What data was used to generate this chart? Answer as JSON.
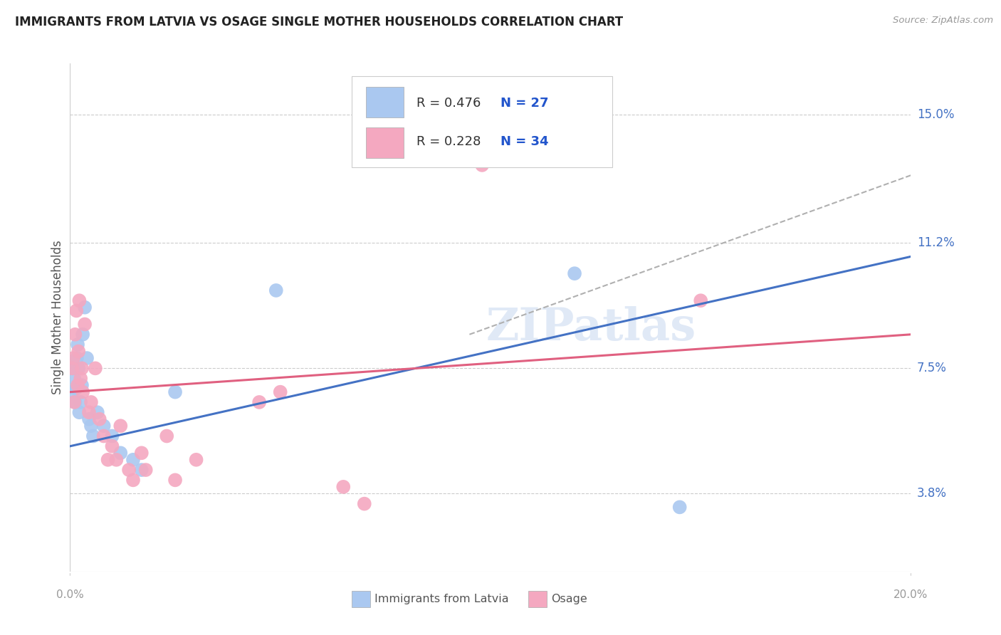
{
  "title": "IMMIGRANTS FROM LATVIA VS OSAGE SINGLE MOTHER HOUSEHOLDS CORRELATION CHART",
  "source": "Source: ZipAtlas.com",
  "ylabel": "Single Mother Households",
  "ytick_labels": [
    "3.8%",
    "7.5%",
    "11.2%",
    "15.0%"
  ],
  "ytick_values": [
    3.8,
    7.5,
    11.2,
    15.0
  ],
  "xmin": 0.0,
  "xmax": 20.0,
  "ymin": 1.5,
  "ymax": 16.5,
  "legend1_R": "R = 0.476",
  "legend1_N": "N = 27",
  "legend2_R": "R = 0.228",
  "legend2_N": "N = 34",
  "legend_label1": "Immigrants from Latvia",
  "legend_label2": "Osage",
  "watermark": "ZIPatlas",
  "blue_color": "#aac8f0",
  "pink_color": "#f4a8c0",
  "blue_line_color": "#4472c4",
  "pink_line_color": "#e06080",
  "r_color": "#333333",
  "n_color": "#2255cc",
  "blue_scatter": [
    [
      0.05,
      6.8
    ],
    [
      0.08,
      7.5
    ],
    [
      0.1,
      7.2
    ],
    [
      0.12,
      6.5
    ],
    [
      0.14,
      6.9
    ],
    [
      0.16,
      7.8
    ],
    [
      0.18,
      8.2
    ],
    [
      0.2,
      7.5
    ],
    [
      0.22,
      6.2
    ],
    [
      0.25,
      6.5
    ],
    [
      0.28,
      7.0
    ],
    [
      0.3,
      8.5
    ],
    [
      0.35,
      9.3
    ],
    [
      0.4,
      7.8
    ],
    [
      0.45,
      6.0
    ],
    [
      0.5,
      5.8
    ],
    [
      0.55,
      5.5
    ],
    [
      0.65,
      6.2
    ],
    [
      0.8,
      5.8
    ],
    [
      1.0,
      5.5
    ],
    [
      1.2,
      5.0
    ],
    [
      1.5,
      4.8
    ],
    [
      1.7,
      4.5
    ],
    [
      2.5,
      6.8
    ],
    [
      4.9,
      9.8
    ],
    [
      12.0,
      10.3
    ],
    [
      14.5,
      3.4
    ]
  ],
  "pink_scatter": [
    [
      0.05,
      7.5
    ],
    [
      0.08,
      7.8
    ],
    [
      0.1,
      6.5
    ],
    [
      0.12,
      8.5
    ],
    [
      0.15,
      9.2
    ],
    [
      0.18,
      7.0
    ],
    [
      0.2,
      8.0
    ],
    [
      0.22,
      9.5
    ],
    [
      0.25,
      7.2
    ],
    [
      0.28,
      7.5
    ],
    [
      0.3,
      6.8
    ],
    [
      0.35,
      8.8
    ],
    [
      0.45,
      6.2
    ],
    [
      0.5,
      6.5
    ],
    [
      0.6,
      7.5
    ],
    [
      0.7,
      6.0
    ],
    [
      0.8,
      5.5
    ],
    [
      0.9,
      4.8
    ],
    [
      1.0,
      5.2
    ],
    [
      1.1,
      4.8
    ],
    [
      1.2,
      5.8
    ],
    [
      1.4,
      4.5
    ],
    [
      1.5,
      4.2
    ],
    [
      1.7,
      5.0
    ],
    [
      1.8,
      4.5
    ],
    [
      2.3,
      5.5
    ],
    [
      2.5,
      4.2
    ],
    [
      3.0,
      4.8
    ],
    [
      4.5,
      6.5
    ],
    [
      5.0,
      6.8
    ],
    [
      6.5,
      4.0
    ],
    [
      7.0,
      3.5
    ],
    [
      9.8,
      13.5
    ],
    [
      15.0,
      9.5
    ]
  ],
  "blue_line_x": [
    0.0,
    20.0
  ],
  "blue_line_y": [
    5.2,
    10.8
  ],
  "pink_line_x": [
    0.0,
    20.0
  ],
  "pink_line_y": [
    6.8,
    8.5
  ],
  "dashed_line_x": [
    9.5,
    20.0
  ],
  "dashed_line_y": [
    8.5,
    13.2
  ]
}
